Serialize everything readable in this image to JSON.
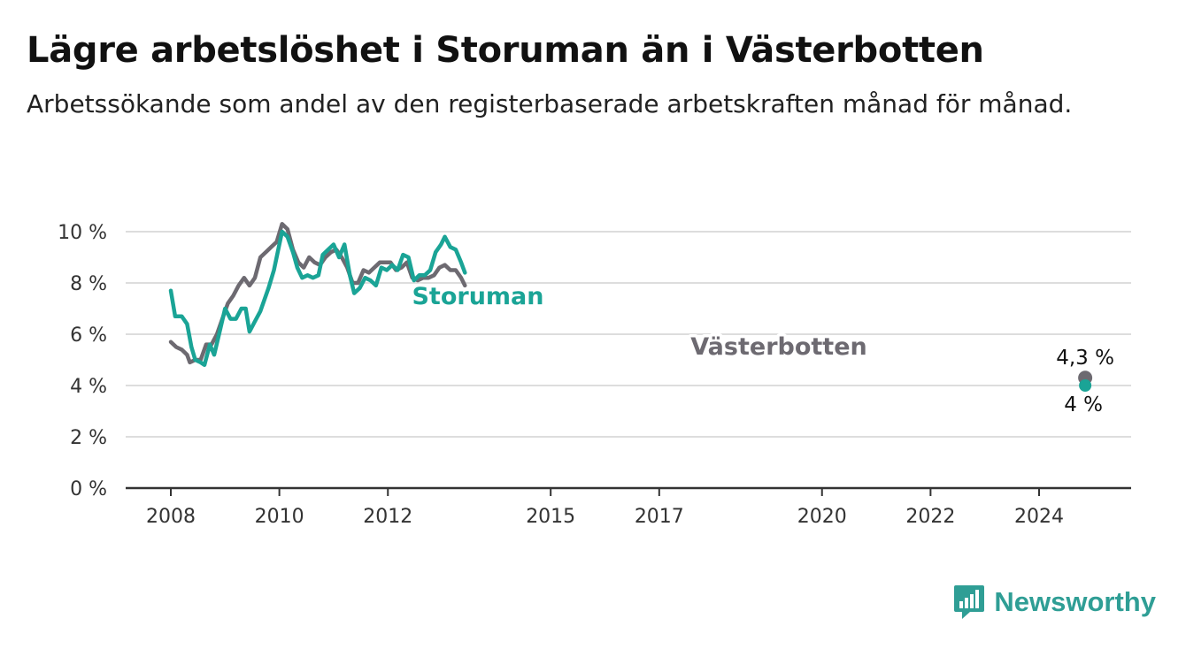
{
  "title": "Lägre arbetslöshet i Storuman än i Västerbotten",
  "subtitle": "Arbetssökande som andel av den registerbaserade arbetskraften månad för månad.",
  "brand": {
    "name": "Newsworthy",
    "logo_icon": "newsworthy-chart-logo-icon"
  },
  "colors": {
    "storuman": "#1aa496",
    "vasterbotten": "#6d6a71",
    "grid": "#dddddd",
    "axis": "#333333"
  },
  "chart_data": {
    "type": "line",
    "x_unit": "year",
    "xlim": [
      2008,
      2025.7
    ],
    "ylim": [
      0,
      10
    ],
    "y_ticks": [
      0,
      2,
      4,
      6,
      8,
      10
    ],
    "y_tick_labels": [
      "0 %",
      "2 %",
      "4 %",
      "6 %",
      "8 %",
      "10 %"
    ],
    "x_ticks": [
      2008,
      2010,
      2012,
      2015,
      2017,
      2020,
      2022,
      2024
    ],
    "x_tick_labels": [
      "2008",
      "2010",
      "2012",
      "2015",
      "2017",
      "2020",
      "2022",
      "2024"
    ],
    "grid": true,
    "series": [
      {
        "name": "Storuman",
        "color_key": "storuman",
        "end_label": "4 %",
        "points": [
          [
            2008.0,
            7.7
          ],
          [
            2008.08,
            6.7
          ],
          [
            2008.2,
            6.7
          ],
          [
            2008.3,
            6.4
          ],
          [
            2008.38,
            5.5
          ],
          [
            2008.45,
            5.0
          ],
          [
            2008.55,
            4.9
          ],
          [
            2008.62,
            4.8
          ],
          [
            2008.72,
            5.6
          ],
          [
            2008.8,
            5.2
          ],
          [
            2008.9,
            6.1
          ],
          [
            2009.0,
            7.0
          ],
          [
            2009.1,
            6.6
          ],
          [
            2009.2,
            6.6
          ],
          [
            2009.3,
            7.0
          ],
          [
            2009.38,
            7.0
          ],
          [
            2009.45,
            6.1
          ],
          [
            2009.55,
            6.5
          ],
          [
            2009.65,
            6.9
          ],
          [
            2009.8,
            7.8
          ],
          [
            2009.9,
            8.5
          ],
          [
            2010.0,
            9.5
          ],
          [
            2010.05,
            10.0
          ],
          [
            2010.15,
            9.8
          ],
          [
            2010.25,
            9.2
          ],
          [
            2010.33,
            8.6
          ],
          [
            2010.42,
            8.2
          ],
          [
            2010.52,
            8.3
          ],
          [
            2010.62,
            8.2
          ],
          [
            2010.72,
            8.3
          ],
          [
            2010.8,
            9.1
          ],
          [
            2010.9,
            9.3
          ],
          [
            2011.0,
            9.5
          ],
          [
            2011.1,
            9.0
          ],
          [
            2011.2,
            9.5
          ],
          [
            2011.3,
            8.3
          ],
          [
            2011.38,
            7.6
          ],
          [
            2011.48,
            7.8
          ],
          [
            2011.58,
            8.2
          ],
          [
            2011.68,
            8.1
          ],
          [
            2011.78,
            7.9
          ],
          [
            2011.88,
            8.6
          ],
          [
            2011.98,
            8.5
          ],
          [
            2012.08,
            8.7
          ],
          [
            2012.18,
            8.5
          ],
          [
            2012.28,
            9.1
          ],
          [
            2012.38,
            9.0
          ],
          [
            2012.48,
            8.1
          ],
          [
            2012.58,
            8.3
          ],
          [
            2012.68,
            8.3
          ],
          [
            2012.78,
            8.5
          ],
          [
            2012.88,
            9.2
          ],
          [
            2012.98,
            9.5
          ],
          [
            2013.05,
            9.8
          ],
          [
            2013.15,
            9.4
          ],
          [
            2013.25,
            9.3
          ],
          [
            2013.35,
            8.8
          ],
          [
            2013.42,
            8.4
          ]
        ]
      },
      {
        "name": "Västerbotten",
        "color_key": "vasterbotten",
        "end_label": "4,3 %",
        "points": [
          [
            2008.0,
            5.7
          ],
          [
            2008.1,
            5.5
          ],
          [
            2008.2,
            5.4
          ],
          [
            2008.3,
            5.2
          ],
          [
            2008.35,
            4.9
          ],
          [
            2008.45,
            5.0
          ],
          [
            2008.55,
            5.0
          ],
          [
            2008.65,
            5.6
          ],
          [
            2008.75,
            5.6
          ],
          [
            2008.85,
            6.0
          ],
          [
            2008.95,
            6.6
          ],
          [
            2009.05,
            7.2
          ],
          [
            2009.15,
            7.5
          ],
          [
            2009.25,
            7.9
          ],
          [
            2009.35,
            8.2
          ],
          [
            2009.45,
            7.9
          ],
          [
            2009.55,
            8.2
          ],
          [
            2009.65,
            9.0
          ],
          [
            2009.75,
            9.2
          ],
          [
            2009.85,
            9.4
          ],
          [
            2009.95,
            9.6
          ],
          [
            2010.05,
            10.3
          ],
          [
            2010.15,
            10.1
          ],
          [
            2010.25,
            9.3
          ],
          [
            2010.35,
            8.8
          ],
          [
            2010.45,
            8.6
          ],
          [
            2010.55,
            9.0
          ],
          [
            2010.65,
            8.8
          ],
          [
            2010.75,
            8.7
          ],
          [
            2010.85,
            9.0
          ],
          [
            2010.95,
            9.2
          ],
          [
            2011.05,
            9.3
          ],
          [
            2011.15,
            9.0
          ],
          [
            2011.25,
            8.6
          ],
          [
            2011.35,
            8.0
          ],
          [
            2011.45,
            8.0
          ],
          [
            2011.55,
            8.5
          ],
          [
            2011.65,
            8.4
          ],
          [
            2011.75,
            8.6
          ],
          [
            2011.85,
            8.8
          ],
          [
            2011.95,
            8.8
          ],
          [
            2012.05,
            8.8
          ],
          [
            2012.15,
            8.5
          ],
          [
            2012.25,
            8.6
          ],
          [
            2012.35,
            8.8
          ],
          [
            2012.45,
            8.2
          ],
          [
            2012.55,
            8.1
          ],
          [
            2012.65,
            8.2
          ],
          [
            2012.75,
            8.2
          ],
          [
            2012.85,
            8.3
          ],
          [
            2012.95,
            8.6
          ],
          [
            2013.05,
            8.7
          ],
          [
            2013.15,
            8.5
          ],
          [
            2013.25,
            8.5
          ],
          [
            2013.35,
            8.2
          ],
          [
            2013.42,
            7.9
          ]
        ]
      }
    ]
  }
}
